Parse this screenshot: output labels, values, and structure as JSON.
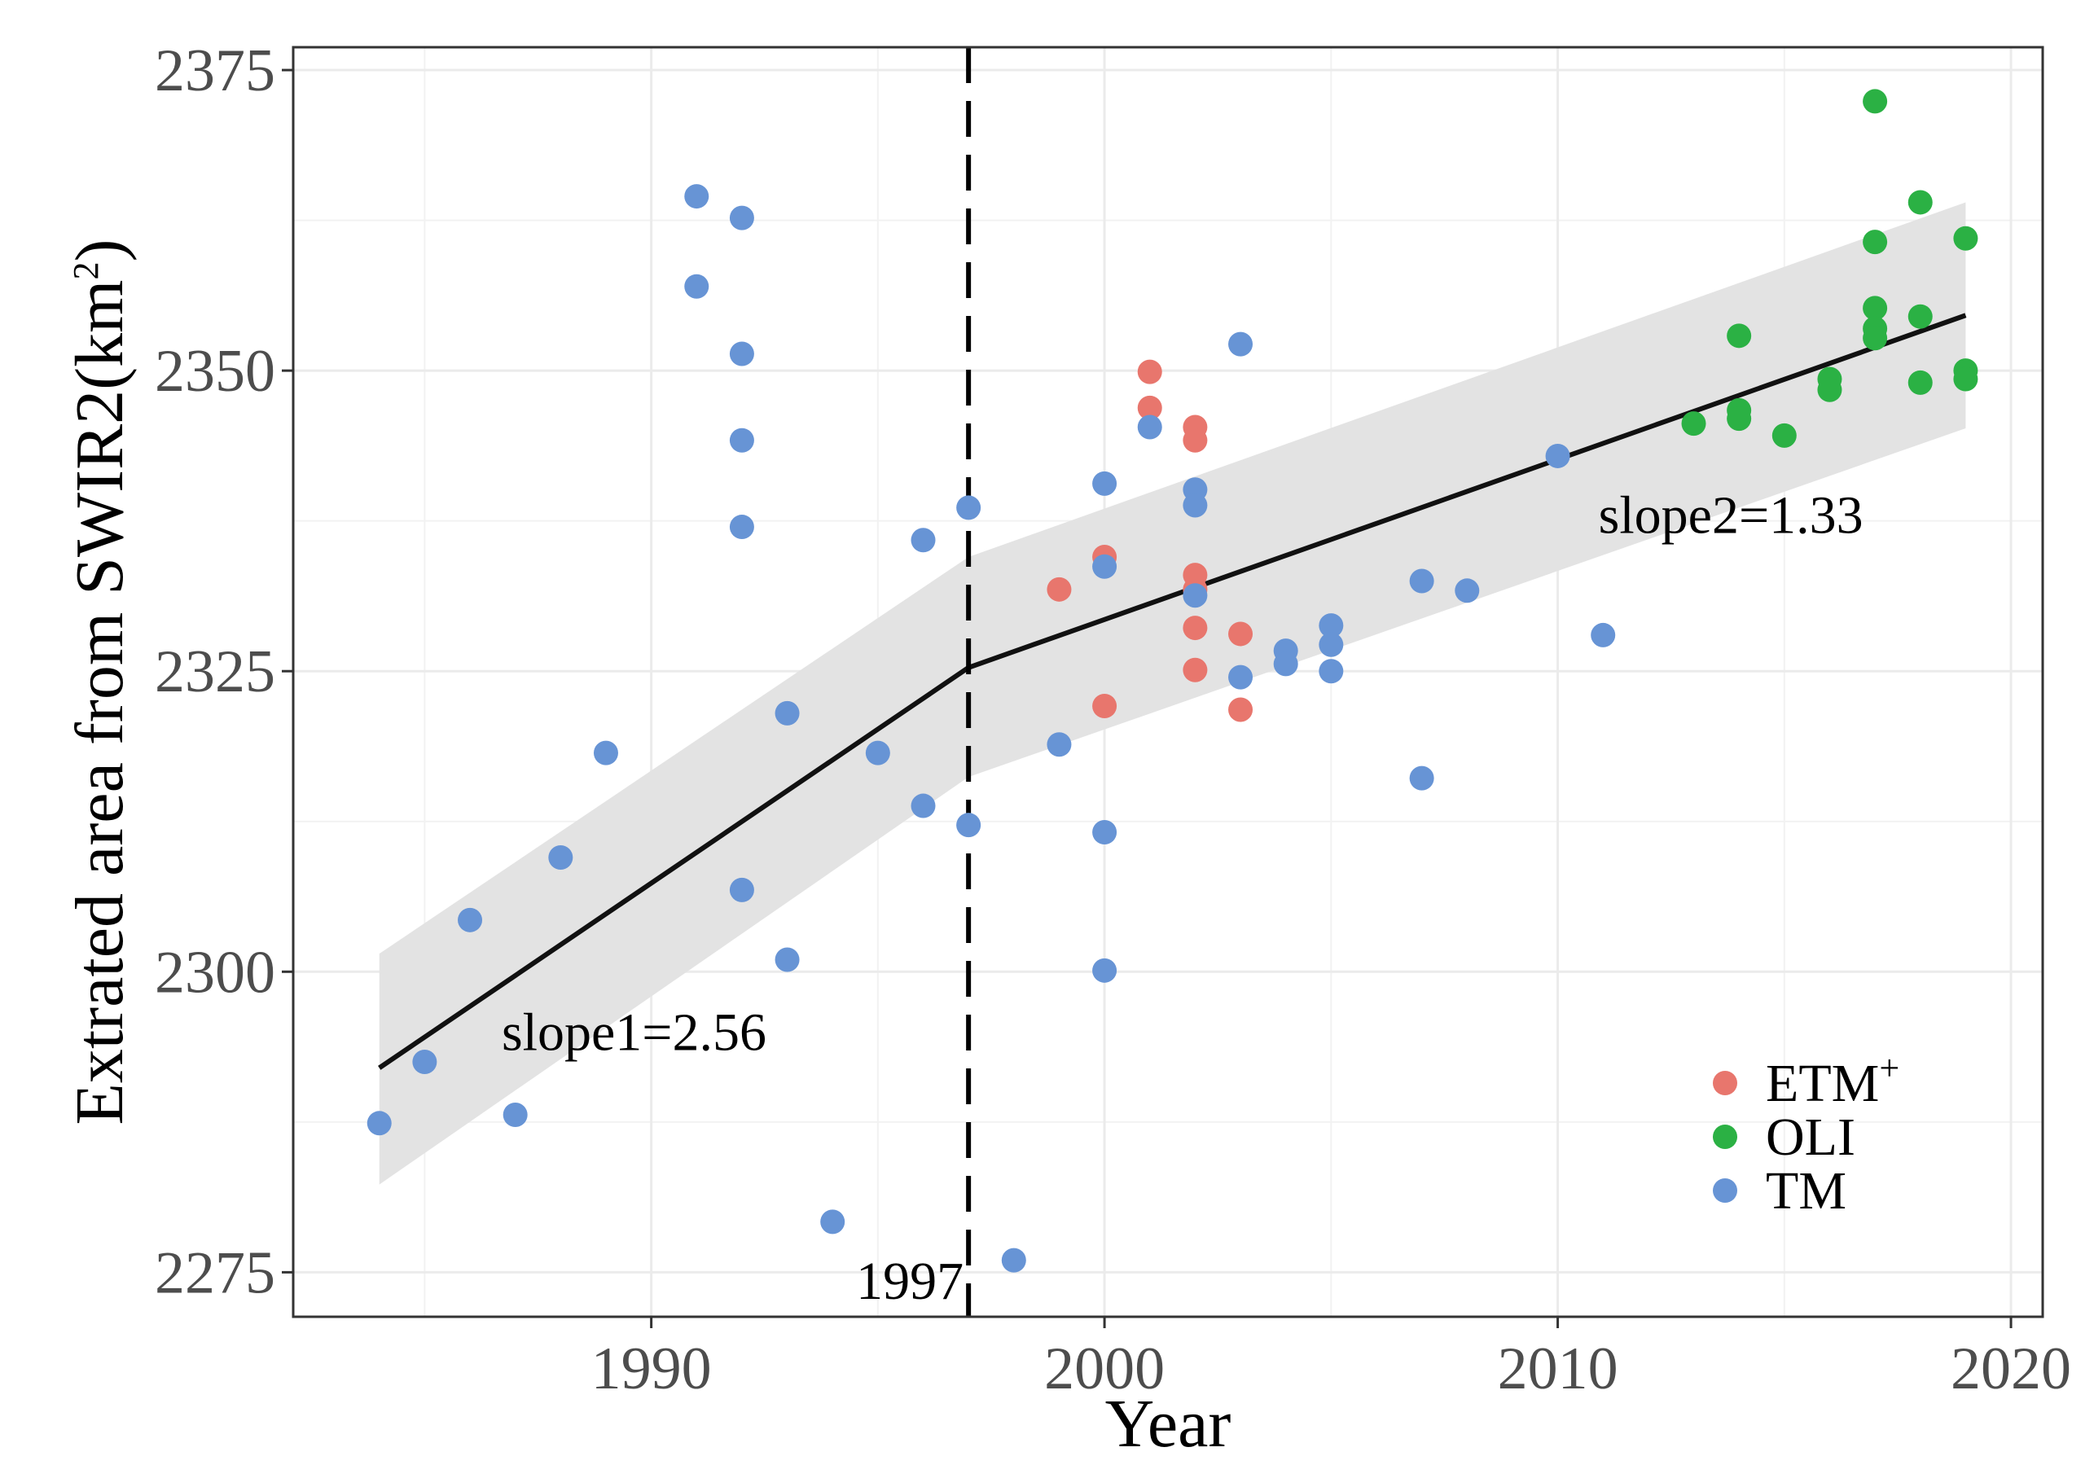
{
  "chart_data": {
    "type": "scatter",
    "xlabel": "Year",
    "ylabel_main": "Extrated area from SWIR2(km",
    "ylabel_sup": "2",
    "ylabel_end": ")",
    "xlim": [
      1982.1,
      2020.7
    ],
    "ylim": [
      2271.3,
      2376.9
    ],
    "x_ticks": [
      1990,
      2000,
      2010,
      2020
    ],
    "y_ticks": [
      2275,
      2300,
      2325,
      2350,
      2375
    ],
    "x_ticks_labels": [
      "1990",
      "2000",
      "2010",
      "2020"
    ],
    "y_ticks_labels": [
      "2275",
      "2300",
      "2325",
      "2350",
      "2375"
    ],
    "grid": true,
    "breakpoint": {
      "x": 1997,
      "label": "1997"
    },
    "fit_line": [
      [
        1984,
        2292
      ],
      [
        1997,
        2325.3
      ],
      [
        2019,
        2354.6
      ]
    ],
    "confidence_band": {
      "upper": [
        [
          1984,
          2301.5
        ],
        [
          1997,
          2334.5
        ],
        [
          2019,
          2364
        ]
      ],
      "lower": [
        [
          1984,
          2282.3
        ],
        [
          1997,
          2316.2
        ],
        [
          2019,
          2345.2
        ]
      ]
    },
    "annotations": [
      {
        "text": "slope1=2.56",
        "x": 1986.7,
        "y": 2293.5
      },
      {
        "text": "slope2=1.33",
        "x": 2010.9,
        "y": 2336.5
      }
    ],
    "legend_position": "bottom-right",
    "series": [
      {
        "name": "ETM",
        "sup": "+",
        "color": "#E8766D",
        "points": [
          [
            1999,
            2331.8
          ],
          [
            2000,
            2334.5
          ],
          [
            2000,
            2322.1
          ],
          [
            2001,
            2349.9
          ],
          [
            2001,
            2346.9
          ],
          [
            2002,
            2345.3
          ],
          [
            2002,
            2344.2
          ],
          [
            2002,
            2333
          ],
          [
            2002,
            2331.8
          ],
          [
            2002,
            2328.6
          ],
          [
            2002,
            2325.1
          ],
          [
            2003,
            2328.1
          ],
          [
            2003,
            2321.8
          ]
        ]
      },
      {
        "name": "OLI",
        "sup": "",
        "color": "#2BB144",
        "points": [
          [
            2013,
            2345.6
          ],
          [
            2014,
            2352.9
          ],
          [
            2014,
            2346.7
          ],
          [
            2014,
            2346
          ],
          [
            2015,
            2344.6
          ],
          [
            2016,
            2349.3
          ],
          [
            2016,
            2348.4
          ],
          [
            2017,
            2372.4
          ],
          [
            2017,
            2360.7
          ],
          [
            2017,
            2355.2
          ],
          [
            2017,
            2353.5
          ],
          [
            2017,
            2352.7
          ],
          [
            2018,
            2364
          ],
          [
            2018,
            2354.5
          ],
          [
            2018,
            2349
          ],
          [
            2019,
            2361
          ],
          [
            2019,
            2350
          ],
          [
            2019,
            2349.3
          ]
        ]
      },
      {
        "name": "TM",
        "sup": "",
        "color": "#6794D5",
        "points": [
          [
            1984,
            2287.4
          ],
          [
            1985,
            2292.5
          ],
          [
            1986,
            2304.3
          ],
          [
            1987,
            2288.1
          ],
          [
            1988,
            2309.5
          ],
          [
            1989,
            2318.2
          ],
          [
            1991,
            2364.5
          ],
          [
            1991,
            2357
          ],
          [
            1992,
            2362.7
          ],
          [
            1992,
            2351.4
          ],
          [
            1992,
            2344.2
          ],
          [
            1992,
            2337
          ],
          [
            1992,
            2306.8
          ],
          [
            1993,
            2321.5
          ],
          [
            1993,
            2301
          ],
          [
            1994,
            2279.2
          ],
          [
            1995,
            2318.2
          ],
          [
            1996,
            2335.9
          ],
          [
            1996,
            2313.8
          ],
          [
            1997,
            2338.6
          ],
          [
            1997,
            2312.2
          ],
          [
            1998,
            2276
          ],
          [
            1999,
            2318.9
          ],
          [
            2000,
            2340.6
          ],
          [
            2000,
            2333.7
          ],
          [
            2000,
            2311.6
          ],
          [
            2000,
            2300.1
          ],
          [
            2001,
            2345.3
          ],
          [
            2002,
            2340.1
          ],
          [
            2002,
            2338.8
          ],
          [
            2002,
            2331.3
          ],
          [
            2003,
            2352.2
          ],
          [
            2003,
            2324.5
          ],
          [
            2004,
            2326.7
          ],
          [
            2004,
            2325.6
          ],
          [
            2005,
            2328.8
          ],
          [
            2005,
            2327.2
          ],
          [
            2005,
            2325
          ],
          [
            2007,
            2332.5
          ],
          [
            2007,
            2316.1
          ],
          [
            2008,
            2331.7
          ],
          [
            2010,
            2342.9
          ],
          [
            2011,
            2328
          ]
        ]
      }
    ]
  }
}
